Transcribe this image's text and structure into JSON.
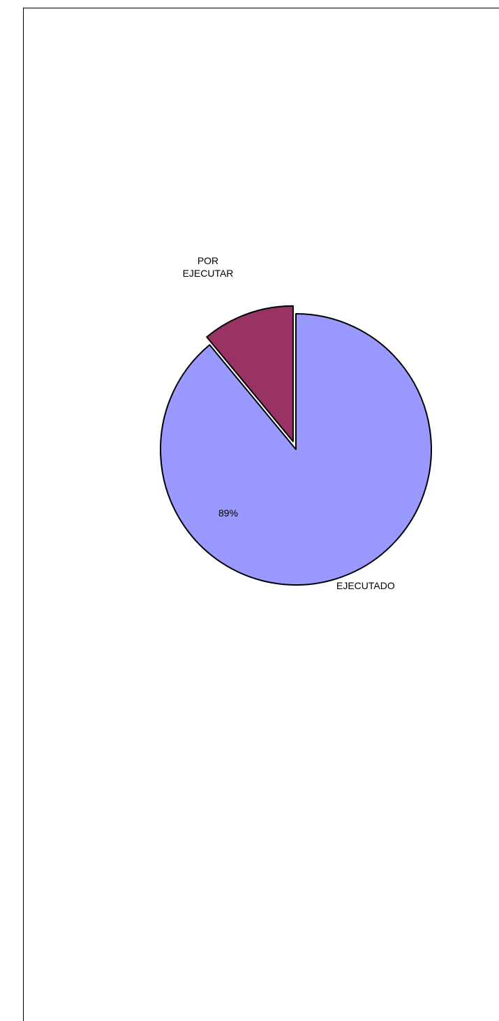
{
  "chart_data": {
    "type": "pie",
    "slices": [
      {
        "label": "EJECUTADO",
        "value": 89,
        "percent_label": "89%",
        "color": "#9999FF"
      },
      {
        "label": "POR EJECUTAR",
        "value": 11,
        "percent_label": "",
        "color": "#993366"
      }
    ],
    "category_labels": [
      "EJECUTADO",
      "POR\nEJECUTAR"
    ],
    "title": "",
    "legend": "none"
  }
}
